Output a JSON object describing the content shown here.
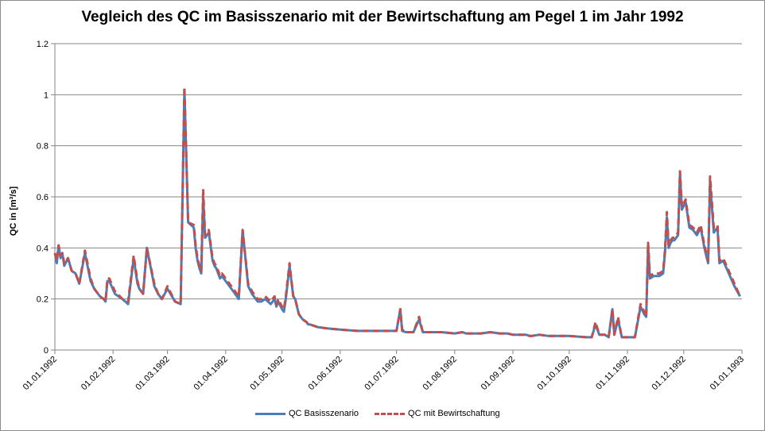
{
  "chart_data": {
    "type": "line",
    "title": "Vegleich des QC im Basisszenario  mit der Bewirtschaftung  am Pegel 1 im Jahr 1992",
    "ylabel": "QC in  [m³/s]",
    "xlabel": "",
    "ylim": [
      0,
      1.2
    ],
    "yticks": [
      "0",
      "0.2",
      "0.4",
      "0.6",
      "0.8",
      "1",
      "1.2"
    ],
    "ytick_values": [
      0,
      0.2,
      0.4,
      0.6,
      0.8,
      1.0,
      1.2
    ],
    "xticks": [
      "01.01.1992",
      "01.02.1992",
      "01.03.1992",
      "01.04.1992",
      "01.05.1992",
      "01.06.1992",
      "01.07.1992",
      "01.08.1992",
      "01.09.1992",
      "01.10.1992",
      "01.11.1992",
      "01.12.1992",
      "01.01.1993"
    ],
    "xtick_dates": [
      "1992-01-01",
      "1992-02-01",
      "1992-03-01",
      "1992-04-01",
      "1992-05-01",
      "1992-06-01",
      "1992-07-01",
      "1992-08-01",
      "1992-09-01",
      "1992-10-01",
      "1992-11-01",
      "1992-12-01",
      "1993-01-01"
    ],
    "grid": true,
    "legend_position": "bottom",
    "x": [
      "1992-01-01",
      "1992-01-02",
      "1992-01-03",
      "1992-01-04",
      "1992-01-05",
      "1992-01-06",
      "1992-01-08",
      "1992-01-10",
      "1992-01-12",
      "1992-01-14",
      "1992-01-17",
      "1992-01-20",
      "1992-01-22",
      "1992-01-25",
      "1992-01-27",
      "1992-01-28",
      "1992-01-29",
      "1992-01-30",
      "1992-02-02",
      "1992-02-06",
      "1992-02-09",
      "1992-02-12",
      "1992-02-14",
      "1992-02-15",
      "1992-02-17",
      "1992-02-19",
      "1992-02-23",
      "1992-02-25",
      "1992-02-27",
      "1992-03-01",
      "1992-03-05",
      "1992-03-08",
      "1992-03-10",
      "1992-03-12",
      "1992-03-15",
      "1992-03-16",
      "1992-03-17",
      "1992-03-18",
      "1992-03-19",
      "1992-03-20",
      "1992-03-21",
      "1992-03-23",
      "1992-03-25",
      "1992-03-26",
      "1992-03-27",
      "1992-03-28",
      "1992-03-29",
      "1992-03-30",
      "1992-04-02",
      "1992-04-05",
      "1992-04-08",
      "1992-04-10",
      "1992-04-13",
      "1992-04-15",
      "1992-04-16",
      "1992-04-17",
      "1992-04-18",
      "1992-04-20",
      "1992-04-22",
      "1992-04-25",
      "1992-04-27",
      "1992-04-28",
      "1992-04-29",
      "1992-05-01",
      "1992-05-02",
      "1992-05-03",
      "1992-05-05",
      "1992-05-07",
      "1992-05-08",
      "1992-05-09",
      "1992-05-10",
      "1992-05-12",
      "1992-05-14",
      "1992-05-15",
      "1992-05-16",
      "1992-05-20",
      "1992-05-25",
      "1992-06-01",
      "1992-06-10",
      "1992-06-20",
      "1992-07-01",
      "1992-07-03",
      "1992-07-04",
      "1992-07-06",
      "1992-07-10",
      "1992-07-13",
      "1992-07-15",
      "1992-07-17",
      "1992-07-20",
      "1992-07-23",
      "1992-07-25",
      "1992-08-01",
      "1992-08-05",
      "1992-08-07",
      "1992-08-10",
      "1992-08-15",
      "1992-08-20",
      "1992-08-25",
      "1992-08-27",
      "1992-08-29",
      "1992-09-01",
      "1992-09-05",
      "1992-09-08",
      "1992-09-10",
      "1992-09-11",
      "1992-09-15",
      "1992-09-20",
      "1992-09-25",
      "1992-10-01",
      "1992-10-10",
      "1992-10-13",
      "1992-10-15",
      "1992-10-17",
      "1992-10-20",
      "1992-10-22",
      "1992-10-24",
      "1992-10-25",
      "1992-10-27",
      "1992-10-29",
      "1992-10-31",
      "1992-11-01",
      "1992-11-03",
      "1992-11-05",
      "1992-11-08",
      "1992-11-10",
      "1992-11-11",
      "1992-11-12",
      "1992-11-13",
      "1992-11-15",
      "1992-11-18",
      "1992-11-20",
      "1992-11-21",
      "1992-11-22",
      "1992-11-23",
      "1992-11-24",
      "1992-11-25",
      "1992-11-26",
      "1992-11-28",
      "1992-11-29",
      "1992-11-30",
      "1992-12-02",
      "1992-12-04",
      "1992-12-06",
      "1992-12-08",
      "1992-12-10",
      "1992-12-12",
      "1992-12-13",
      "1992-12-14",
      "1992-12-15",
      "1992-12-17",
      "1992-12-19",
      "1992-12-20",
      "1992-12-22",
      "1992-12-25",
      "1992-12-28",
      "1992-12-31"
    ],
    "series": [
      {
        "name": "QC Basisszenario",
        "color": "#4a7ebb",
        "dash": "solid",
        "values": [
          0.38,
          0.34,
          0.41,
          0.36,
          0.38,
          0.33,
          0.36,
          0.31,
          0.3,
          0.26,
          0.38,
          0.27,
          0.24,
          0.21,
          0.2,
          0.19,
          0.27,
          0.27,
          0.22,
          0.2,
          0.18,
          0.36,
          0.26,
          0.24,
          0.22,
          0.4,
          0.25,
          0.22,
          0.2,
          0.24,
          0.19,
          0.18,
          1.02,
          0.5,
          0.48,
          0.4,
          0.35,
          0.32,
          0.3,
          0.6,
          0.44,
          0.46,
          0.35,
          0.33,
          0.32,
          0.3,
          0.28,
          0.29,
          0.26,
          0.23,
          0.2,
          0.47,
          0.25,
          0.22,
          0.21,
          0.2,
          0.19,
          0.19,
          0.2,
          0.18,
          0.2,
          0.17,
          0.19,
          0.16,
          0.15,
          0.2,
          0.33,
          0.21,
          0.2,
          0.17,
          0.14,
          0.12,
          0.11,
          0.1,
          0.1,
          0.09,
          0.085,
          0.08,
          0.075,
          0.075,
          0.075,
          0.16,
          0.075,
          0.07,
          0.07,
          0.12,
          0.07,
          0.07,
          0.07,
          0.07,
          0.07,
          0.065,
          0.07,
          0.065,
          0.065,
          0.065,
          0.07,
          0.065,
          0.065,
          0.065,
          0.06,
          0.06,
          0.06,
          0.055,
          0.055,
          0.06,
          0.055,
          0.055,
          0.055,
          0.05,
          0.05,
          0.1,
          0.06,
          0.06,
          0.05,
          0.16,
          0.06,
          0.12,
          0.05,
          0.05,
          0.05,
          0.05,
          0.05,
          0.17,
          0.14,
          0.13,
          0.41,
          0.28,
          0.29,
          0.29,
          0.3,
          0.38,
          0.52,
          0.4,
          0.42,
          0.43,
          0.43,
          0.45,
          0.69,
          0.55,
          0.58,
          0.48,
          0.47,
          0.45,
          0.48,
          0.4,
          0.37,
          0.34,
          0.66,
          0.46,
          0.48,
          0.34,
          0.35,
          0.3,
          0.25,
          0.21
        ]
      },
      {
        "name": "QC mit Bewirtschaftung",
        "color": "#c0504d",
        "dash": "dashed",
        "values": [
          0.38,
          0.35,
          0.41,
          0.37,
          0.38,
          0.34,
          0.36,
          0.31,
          0.3,
          0.26,
          0.39,
          0.28,
          0.24,
          0.21,
          0.2,
          0.19,
          0.28,
          0.28,
          0.23,
          0.2,
          0.19,
          0.37,
          0.27,
          0.24,
          0.22,
          0.4,
          0.26,
          0.22,
          0.2,
          0.25,
          0.19,
          0.18,
          1.03,
          0.5,
          0.49,
          0.41,
          0.36,
          0.33,
          0.31,
          0.63,
          0.45,
          0.47,
          0.36,
          0.34,
          0.33,
          0.31,
          0.29,
          0.3,
          0.27,
          0.24,
          0.21,
          0.47,
          0.26,
          0.23,
          0.22,
          0.21,
          0.2,
          0.2,
          0.21,
          0.19,
          0.21,
          0.18,
          0.2,
          0.17,
          0.16,
          0.21,
          0.34,
          0.21,
          0.2,
          0.17,
          0.14,
          0.12,
          0.11,
          0.1,
          0.1,
          0.09,
          0.085,
          0.08,
          0.075,
          0.075,
          0.075,
          0.16,
          0.08,
          0.07,
          0.07,
          0.13,
          0.07,
          0.07,
          0.07,
          0.07,
          0.07,
          0.065,
          0.07,
          0.065,
          0.065,
          0.065,
          0.07,
          0.065,
          0.065,
          0.065,
          0.06,
          0.06,
          0.06,
          0.055,
          0.055,
          0.06,
          0.055,
          0.055,
          0.055,
          0.05,
          0.05,
          0.11,
          0.06,
          0.06,
          0.05,
          0.16,
          0.06,
          0.13,
          0.05,
          0.05,
          0.05,
          0.05,
          0.05,
          0.18,
          0.15,
          0.13,
          0.42,
          0.29,
          0.3,
          0.3,
          0.31,
          0.39,
          0.54,
          0.41,
          0.43,
          0.44,
          0.44,
          0.46,
          0.7,
          0.56,
          0.59,
          0.49,
          0.48,
          0.46,
          0.49,
          0.41,
          0.38,
          0.35,
          0.68,
          0.48,
          0.49,
          0.35,
          0.36,
          0.31,
          0.26,
          0.21
        ]
      }
    ]
  }
}
